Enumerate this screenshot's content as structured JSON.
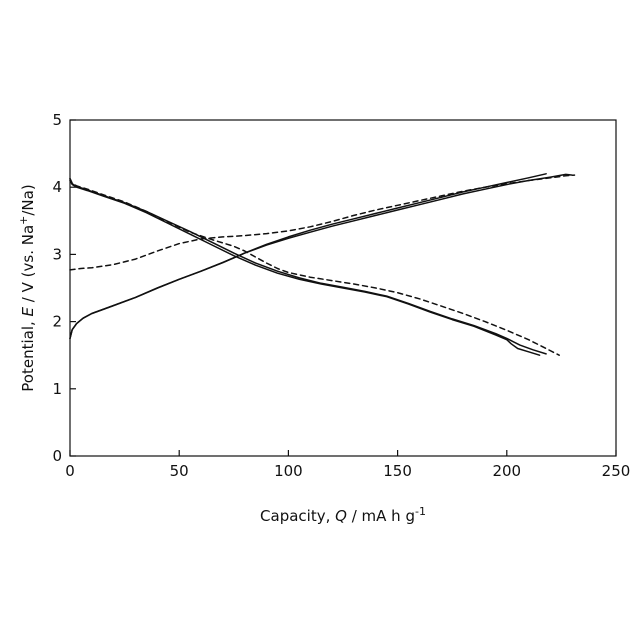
{
  "chart_data": {
    "type": "line",
    "title": "",
    "xlabel": {
      "prefix": "Capacity, ",
      "symbol": "Q",
      "units": " / mA h g",
      "superscript": "-1"
    },
    "ylabel": {
      "prefix": "Potential, ",
      "symbol": "E",
      "units_before": " / V (vs. Na",
      "superscript": "+",
      "units_after": "/Na)"
    },
    "xlim": [
      0,
      250
    ],
    "ylim": [
      0,
      5
    ],
    "xticks": [
      0,
      50,
      100,
      150,
      200,
      250
    ],
    "yticks": [
      0,
      1,
      2,
      3,
      4,
      5
    ],
    "grid": false,
    "legend": "none",
    "series": [
      {
        "style": "solid",
        "x": [
          0,
          1,
          3,
          6,
          10,
          15,
          20,
          30,
          40,
          50,
          60,
          70,
          80,
          90,
          100,
          110,
          120,
          130,
          140,
          150,
          160,
          170,
          180,
          190,
          200,
          210,
          220,
          227,
          230
        ],
        "y": [
          1.75,
          1.88,
          1.97,
          2.05,
          2.12,
          2.18,
          2.24,
          2.36,
          2.5,
          2.63,
          2.75,
          2.88,
          3.02,
          3.14,
          3.24,
          3.33,
          3.42,
          3.5,
          3.58,
          3.66,
          3.74,
          3.82,
          3.9,
          3.97,
          4.04,
          4.1,
          4.15,
          4.19,
          4.18
        ]
      },
      {
        "style": "solid",
        "x": [
          0,
          1,
          3,
          6,
          10,
          15,
          20,
          30,
          40,
          50,
          60,
          70,
          80,
          90,
          100,
          110,
          120,
          130,
          140,
          150,
          160,
          170,
          180,
          190,
          200,
          210,
          218
        ],
        "y": [
          1.75,
          1.88,
          1.97,
          2.05,
          2.12,
          2.18,
          2.24,
          2.36,
          2.5,
          2.63,
          2.75,
          2.88,
          3.02,
          3.15,
          3.26,
          3.36,
          3.45,
          3.53,
          3.61,
          3.69,
          3.77,
          3.85,
          3.93,
          4.0,
          4.07,
          4.14,
          4.2
        ]
      },
      {
        "style": "dashed",
        "x": [
          0,
          5,
          10,
          20,
          30,
          40,
          50,
          60,
          70,
          80,
          90,
          100,
          110,
          120,
          130,
          140,
          150,
          160,
          170,
          180,
          190,
          200,
          210,
          220,
          227,
          231
        ],
        "y": [
          2.77,
          2.79,
          2.8,
          2.85,
          2.93,
          3.05,
          3.16,
          3.23,
          3.26,
          3.28,
          3.31,
          3.35,
          3.41,
          3.49,
          3.58,
          3.66,
          3.73,
          3.8,
          3.87,
          3.94,
          4.0,
          4.05,
          4.1,
          4.14,
          4.17,
          4.18
        ]
      },
      {
        "style": "solid",
        "x": [
          0,
          1,
          3,
          8,
          15,
          25,
          35,
          45,
          55,
          65,
          75,
          85,
          95,
          105,
          115,
          125,
          135,
          145,
          155,
          165,
          175,
          185,
          195,
          200,
          202,
          205,
          210,
          215
        ],
        "y": [
          4.1,
          4.04,
          4.0,
          3.95,
          3.87,
          3.76,
          3.62,
          3.46,
          3.3,
          3.14,
          2.98,
          2.84,
          2.72,
          2.63,
          2.56,
          2.5,
          2.44,
          2.37,
          2.26,
          2.14,
          2.03,
          1.93,
          1.8,
          1.73,
          1.67,
          1.6,
          1.55,
          1.5
        ]
      },
      {
        "style": "solid",
        "x": [
          0,
          1,
          3,
          8,
          15,
          25,
          35,
          45,
          55,
          65,
          75,
          85,
          95,
          105,
          115,
          125,
          135,
          145,
          155,
          165,
          175,
          185,
          195,
          200,
          203,
          206,
          212,
          218
        ],
        "y": [
          4.12,
          4.05,
          4.01,
          3.96,
          3.88,
          3.77,
          3.64,
          3.49,
          3.34,
          3.18,
          3.02,
          2.87,
          2.75,
          2.65,
          2.57,
          2.51,
          2.45,
          2.38,
          2.27,
          2.15,
          2.04,
          1.94,
          1.82,
          1.75,
          1.7,
          1.65,
          1.58,
          1.52
        ]
      },
      {
        "style": "dashed",
        "x": [
          0,
          1,
          3,
          8,
          15,
          25,
          35,
          45,
          55,
          65,
          75,
          80,
          85,
          90,
          95,
          100,
          110,
          120,
          130,
          140,
          150,
          160,
          170,
          180,
          190,
          200,
          210,
          218,
          224
        ],
        "y": [
          4.13,
          4.06,
          4.02,
          3.97,
          3.89,
          3.78,
          3.64,
          3.48,
          3.33,
          3.22,
          3.12,
          3.05,
          2.96,
          2.87,
          2.79,
          2.73,
          2.66,
          2.61,
          2.56,
          2.5,
          2.43,
          2.34,
          2.23,
          2.12,
          2.0,
          1.87,
          1.73,
          1.6,
          1.5
        ]
      }
    ]
  }
}
